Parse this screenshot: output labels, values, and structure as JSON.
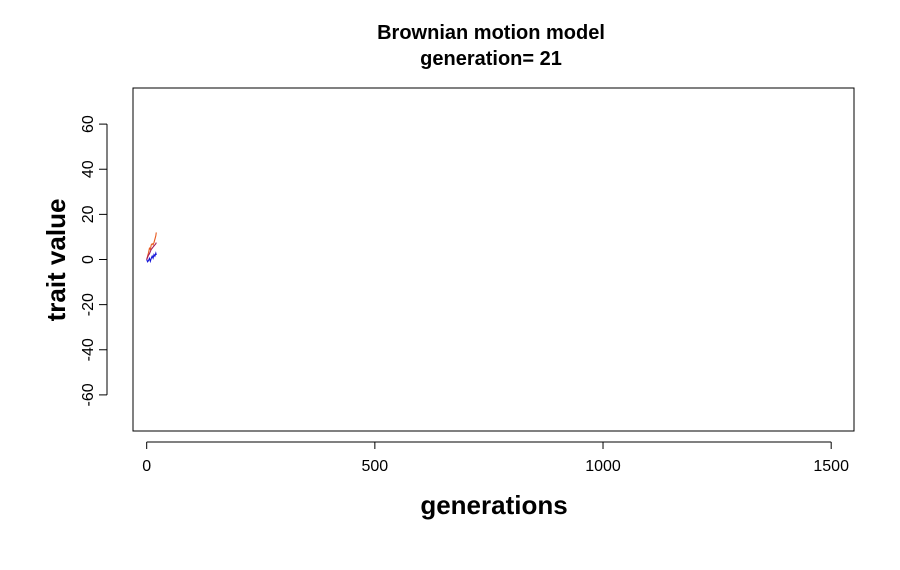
{
  "chart_data": {
    "type": "line",
    "title": "Brownian motion model",
    "subtitle": "generation= 21",
    "xlabel": "generations",
    "ylabel": "trait value",
    "xlim": [
      -30,
      1550
    ],
    "ylim": [
      -76,
      76
    ],
    "xticks": [
      0,
      500,
      1000,
      1500
    ],
    "yticks": [
      -60,
      -40,
      -20,
      0,
      20,
      40,
      60
    ],
    "grid": false,
    "legend": "none",
    "series": [
      {
        "color": "#e8581c",
        "x": [
          0,
          2,
          4,
          6,
          8,
          10,
          12,
          14,
          16,
          18,
          20,
          21
        ],
        "y": [
          0,
          1.5,
          3,
          5,
          4.5,
          6.5,
          7,
          6.5,
          7.5,
          9,
          10.5,
          12
        ]
      },
      {
        "color": "#1414d8",
        "x": [
          0,
          2,
          4,
          6,
          8,
          10,
          12,
          14,
          16,
          18,
          20,
          21
        ],
        "y": [
          0,
          -1,
          -0.5,
          0.5,
          -0.8,
          0.5,
          1.5,
          0.6,
          2.2,
          1.5,
          2.8,
          2
        ]
      },
      {
        "color": "#a51a5a",
        "x": [
          0,
          2,
          4,
          6,
          8,
          10,
          12,
          14,
          16,
          18,
          20,
          21
        ],
        "y": [
          0,
          1,
          2,
          2.5,
          3.5,
          4.5,
          5,
          5.5,
          6,
          6.5,
          7,
          7.5
        ]
      }
    ]
  }
}
